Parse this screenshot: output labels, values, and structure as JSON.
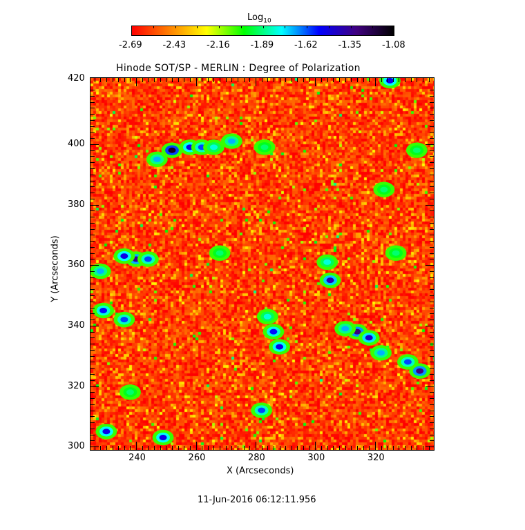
{
  "chart_data": {
    "type": "heatmap",
    "title": "Hinode SOT/SP - MERLIN : Degree of Polarization",
    "xlabel": "X (Arcseconds)",
    "ylabel": "Y (Arcseconds)",
    "xlim": [
      224.7,
      339.7
    ],
    "ylim": [
      298.9,
      421.9
    ],
    "xticks": [
      240,
      260,
      280,
      300,
      320
    ],
    "yticks": [
      300,
      320,
      340,
      360,
      380,
      400
    ],
    "colorbar": {
      "label": "Log",
      "label_sub": "10",
      "range": [
        -2.69,
        -1.08
      ],
      "ticks": [
        "-2.69",
        "-2.43",
        "-2.16",
        "-1.89",
        "-1.62",
        "-1.35",
        "-1.08"
      ],
      "colors": [
        "#ff0000",
        "#ff8000",
        "#ffff00",
        "#00ff00",
        "#00ffff",
        "#0000ff",
        "#400080",
        "#000000"
      ]
    },
    "background_level": -2.6,
    "features": [
      {
        "x": 252,
        "y": 398,
        "value": -1.15
      },
      {
        "x": 258,
        "y": 399,
        "value": -1.5
      },
      {
        "x": 262,
        "y": 399,
        "value": -1.6
      },
      {
        "x": 247,
        "y": 395,
        "value": -1.7
      },
      {
        "x": 240,
        "y": 362,
        "value": -1.35
      },
      {
        "x": 236,
        "y": 363,
        "value": -1.5
      },
      {
        "x": 244,
        "y": 362,
        "value": -1.6
      },
      {
        "x": 228,
        "y": 358,
        "value": -1.7
      },
      {
        "x": 229,
        "y": 345,
        "value": -1.55
      },
      {
        "x": 236,
        "y": 342,
        "value": -1.6
      },
      {
        "x": 286,
        "y": 338,
        "value": -1.55
      },
      {
        "x": 284,
        "y": 343,
        "value": -1.8
      },
      {
        "x": 288,
        "y": 333,
        "value": -1.5
      },
      {
        "x": 305,
        "y": 355,
        "value": -1.4
      },
      {
        "x": 304,
        "y": 361,
        "value": -1.8
      },
      {
        "x": 314,
        "y": 338,
        "value": -1.3
      },
      {
        "x": 318,
        "y": 336,
        "value": -1.45
      },
      {
        "x": 310,
        "y": 339,
        "value": -1.7
      },
      {
        "x": 322,
        "y": 331,
        "value": -1.7
      },
      {
        "x": 335,
        "y": 325,
        "value": -1.3
      },
      {
        "x": 331,
        "y": 328,
        "value": -1.6
      },
      {
        "x": 283,
        "y": 399,
        "value": -1.9
      },
      {
        "x": 268,
        "y": 364,
        "value": -1.9
      },
      {
        "x": 266,
        "y": 399,
        "value": -1.8
      },
      {
        "x": 272,
        "y": 401,
        "value": -1.7
      },
      {
        "x": 230,
        "y": 305,
        "value": -1.5
      },
      {
        "x": 249,
        "y": 303,
        "value": -1.5
      },
      {
        "x": 325,
        "y": 421,
        "value": -1.5
      },
      {
        "x": 238,
        "y": 318,
        "value": -1.9
      },
      {
        "x": 282,
        "y": 312,
        "value": -1.6
      },
      {
        "x": 323,
        "y": 385,
        "value": -1.9
      },
      {
        "x": 334,
        "y": 398,
        "value": -1.9
      },
      {
        "x": 327,
        "y": 364,
        "value": -1.9
      }
    ]
  },
  "footer": {
    "timestamp": "11-Jun-2016 06:12:11.956"
  }
}
